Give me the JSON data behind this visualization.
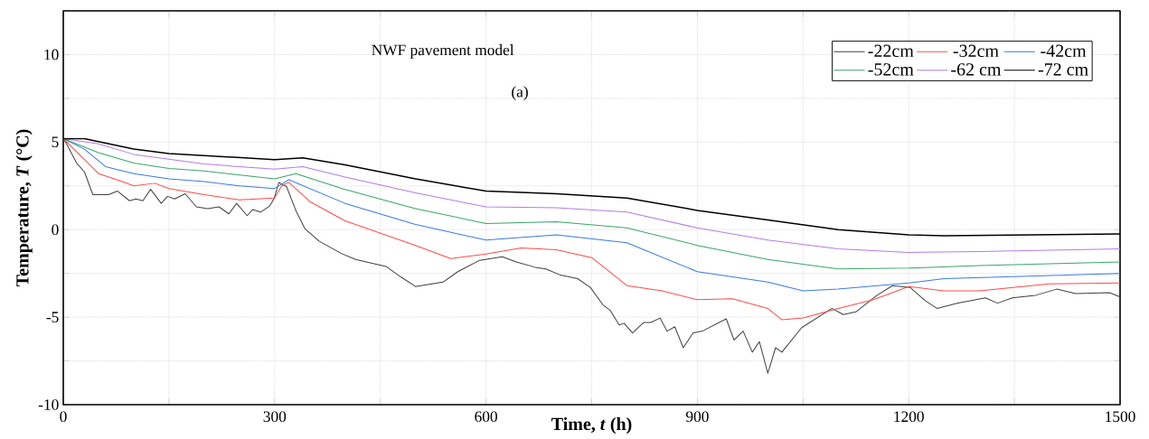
{
  "chart_data": {
    "type": "line",
    "title": "NWF pavement model",
    "annotations": [
      "(a)"
    ],
    "xlabel": "Time, *t* (h)",
    "ylabel": "Temperature, *T* (°C)",
    "xlim": [
      0,
      1500
    ],
    "ylim": [
      -10,
      12.5
    ],
    "xticks": [
      0,
      {
        "value": 150,
        "label": null
      },
      300,
      {
        "value": 450,
        "label": null
      },
      600,
      {
        "value": 750,
        "label": null
      },
      900,
      {
        "value": 1050,
        "label": null
      },
      1200,
      {
        "value": 1350,
        "label": null
      },
      1500
    ],
    "yticks": [
      -10,
      {
        "value": -7.5,
        "label": null
      },
      -5,
      {
        "value": -2.5,
        "label": null
      },
      0,
      {
        "value": 2.5,
        "label": null
      },
      5,
      {
        "value": 7.5,
        "label": null
      },
      10,
      {
        "value": 12.5,
        "label": null
      }
    ],
    "grid": true,
    "legend": "top right",
    "marker": "none",
    "line_style": "solid",
    "series": [
      {
        "name": "-22cm",
        "color": "#404040",
        "x": [
          0,
          2,
          19,
          30,
          42,
          64,
          77,
          94,
          103,
          113,
          124,
          139,
          148,
          158,
          173,
          189,
          205,
          221,
          235,
          246,
          261,
          269,
          280,
          293,
          299,
          306,
          317,
          330,
          343,
          363,
          394,
          415,
          458,
          479,
          500,
          539,
          560,
          591,
          623,
          643,
          670,
          685,
          706,
          730,
          748,
          766,
          776,
          789,
          796,
          808,
          824,
          834,
          847,
          857,
          868,
          880,
          894,
          907,
          941,
          952,
          965,
          978,
          988,
          1000,
          1011,
          1020,
          1048,
          1091,
          1107,
          1125,
          1155,
          1177,
          1202,
          1223,
          1240,
          1270,
          1309,
          1326,
          1347,
          1380,
          1410,
          1437,
          1485,
          1500
        ],
        "values": [
          5.2,
          5.1,
          3.8,
          3.3,
          2.0,
          2.0,
          2.2,
          1.65,
          1.75,
          1.65,
          2.3,
          1.5,
          1.9,
          1.75,
          2.05,
          1.3,
          1.2,
          1.3,
          0.9,
          1.5,
          0.8,
          1.15,
          1.0,
          1.35,
          1.75,
          2.7,
          2.45,
          1.1,
          0.05,
          -0.65,
          -1.35,
          -1.7,
          -2.1,
          -2.7,
          -3.25,
          -3.0,
          -2.4,
          -1.75,
          -1.55,
          -1.85,
          -2.15,
          -2.25,
          -2.6,
          -2.8,
          -3.3,
          -4.3,
          -4.6,
          -5.45,
          -5.35,
          -5.9,
          -5.3,
          -5.3,
          -5.05,
          -5.8,
          -5.55,
          -6.75,
          -5.9,
          -5.8,
          -5.1,
          -6.3,
          -5.8,
          -7.0,
          -6.4,
          -8.2,
          -6.75,
          -7.0,
          -5.6,
          -4.5,
          -4.85,
          -4.7,
          -3.75,
          -3.2,
          -3.3,
          -4.05,
          -4.5,
          -4.2,
          -3.9,
          -4.2,
          -3.9,
          -3.75,
          -3.4,
          -3.65,
          -3.6,
          -3.85
        ]
      },
      {
        "name": "-32cm",
        "color": "#ff4b4b",
        "x": [
          0,
          30,
          50,
          80,
          100,
          130,
          150,
          200,
          250,
          300,
          310,
          320,
          350,
          400,
          500,
          550,
          600,
          650,
          700,
          750,
          800,
          850,
          900,
          950,
          1000,
          1020,
          1050,
          1100,
          1150,
          1200,
          1250,
          1300,
          1400,
          1500
        ],
        "values": [
          5.2,
          4.0,
          3.2,
          2.8,
          2.5,
          2.65,
          2.35,
          2.0,
          1.7,
          1.8,
          2.5,
          2.7,
          1.6,
          0.5,
          -0.9,
          -1.65,
          -1.4,
          -1.05,
          -1.15,
          -1.6,
          -3.2,
          -3.5,
          -4.0,
          -3.95,
          -4.5,
          -5.15,
          -5.05,
          -4.5,
          -4.0,
          -3.25,
          -3.5,
          -3.5,
          -3.1,
          -3.05
        ]
      },
      {
        "name": "-42cm",
        "color": "#3a7be0",
        "x": [
          0,
          30,
          60,
          100,
          150,
          200,
          250,
          300,
          320,
          400,
          500,
          600,
          700,
          800,
          900,
          1000,
          1050,
          1100,
          1200,
          1250,
          1500
        ],
        "values": [
          5.2,
          4.6,
          3.6,
          3.2,
          2.9,
          2.75,
          2.5,
          2.35,
          2.85,
          1.5,
          0.3,
          -0.6,
          -0.3,
          -0.75,
          -2.4,
          -3.0,
          -3.5,
          -3.4,
          -3.05,
          -2.8,
          -2.5
        ]
      },
      {
        "name": "-52cm",
        "color": "#3aa56a",
        "x": [
          0,
          50,
          100,
          150,
          200,
          300,
          330,
          400,
          500,
          600,
          700,
          800,
          900,
          1000,
          1100,
          1200,
          1300,
          1500
        ],
        "values": [
          5.2,
          4.4,
          3.8,
          3.5,
          3.35,
          2.9,
          3.2,
          2.3,
          1.2,
          0.35,
          0.45,
          0.1,
          -0.9,
          -1.7,
          -2.25,
          -2.2,
          -2.05,
          -1.85
        ]
      },
      {
        "name": "-62 cm",
        "color": "#b57be8",
        "x": [
          0,
          50,
          100,
          200,
          300,
          340,
          400,
          500,
          600,
          700,
          800,
          900,
          1000,
          1100,
          1200,
          1300,
          1500
        ],
        "values": [
          5.2,
          4.9,
          4.3,
          3.75,
          3.45,
          3.6,
          3.0,
          2.1,
          1.3,
          1.25,
          1.0,
          0.1,
          -0.6,
          -1.1,
          -1.3,
          -1.25,
          -1.1
        ]
      },
      {
        "name": "-72 cm",
        "color": "#000000",
        "x": [
          0,
          30,
          100,
          150,
          300,
          340,
          400,
          500,
          600,
          700,
          800,
          900,
          1000,
          1100,
          1200,
          1250,
          1500
        ],
        "values": [
          5.2,
          5.2,
          4.6,
          4.35,
          4.0,
          4.1,
          3.7,
          2.9,
          2.2,
          2.05,
          1.8,
          1.1,
          0.55,
          0.0,
          -0.3,
          -0.35,
          -0.25
        ]
      }
    ]
  }
}
